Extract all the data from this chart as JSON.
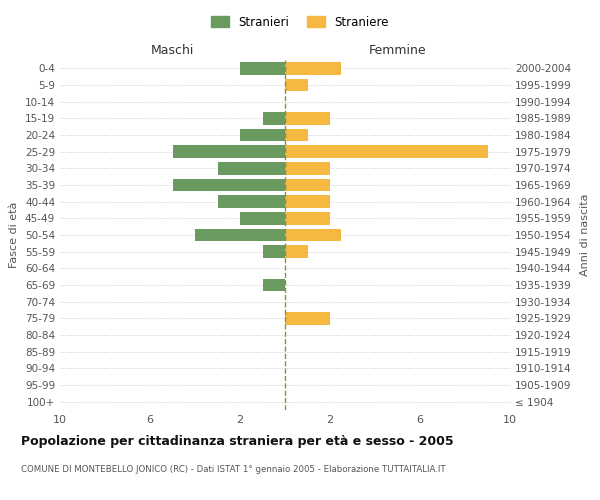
{
  "age_groups": [
    "0-4",
    "5-9",
    "10-14",
    "15-19",
    "20-24",
    "25-29",
    "30-34",
    "35-39",
    "40-44",
    "45-49",
    "50-54",
    "55-59",
    "60-64",
    "65-69",
    "70-74",
    "75-79",
    "80-84",
    "85-89",
    "90-94",
    "95-99",
    "100+"
  ],
  "birth_years": [
    "2000-2004",
    "1995-1999",
    "1990-1994",
    "1985-1989",
    "1980-1984",
    "1975-1979",
    "1970-1974",
    "1965-1969",
    "1960-1964",
    "1955-1959",
    "1950-1954",
    "1945-1949",
    "1940-1944",
    "1935-1939",
    "1930-1934",
    "1925-1929",
    "1920-1924",
    "1915-1919",
    "1910-1914",
    "1905-1909",
    "≤ 1904"
  ],
  "maschi": [
    2,
    0,
    0,
    1,
    2,
    5,
    3,
    5,
    3,
    2,
    4,
    1,
    0,
    1,
    0,
    0,
    0,
    0,
    0,
    0,
    0
  ],
  "femmine": [
    2.5,
    1,
    0,
    2,
    1,
    9,
    2,
    2,
    2,
    2,
    2.5,
    1,
    0,
    0,
    0,
    2,
    0,
    0,
    0,
    0,
    0
  ],
  "maschi_color": "#6a9a5f",
  "femmine_color": "#f5b942",
  "background_color": "#ffffff",
  "grid_color": "#cccccc",
  "dashed_line_color": "#8b8b4e",
  "title": "Popolazione per cittadinanza straniera per età e sesso - 2005",
  "subtitle": "COMUNE DI MONTEBELLO JONICO (RC) - Dati ISTAT 1° gennaio 2005 - Elaborazione TUTTAITALIA.IT",
  "xlabel_left": "Maschi",
  "xlabel_right": "Femmine",
  "ylabel_left": "Fasce di età",
  "ylabel_right": "Anni di nascita",
  "legend_maschi": "Stranieri",
  "legend_femmine": "Straniere",
  "xlim": 10
}
